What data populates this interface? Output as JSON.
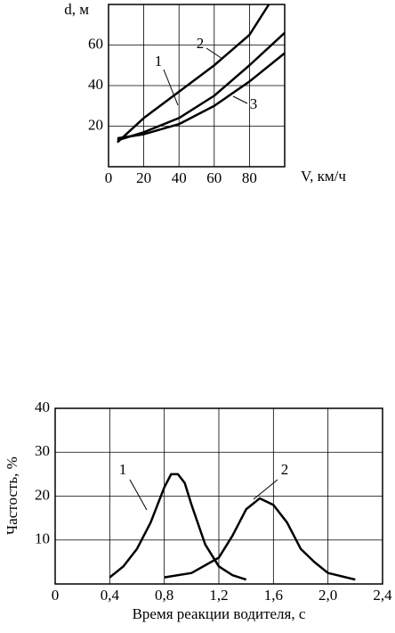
{
  "chart_data": [
    {
      "type": "line",
      "xlabel": "V, км/ч",
      "ylabel": "d, м",
      "xlim": [
        0,
        100
      ],
      "ylim": [
        0,
        80
      ],
      "xticks": [
        0,
        20,
        40,
        60,
        80
      ],
      "yticks": [
        20,
        40,
        60
      ],
      "grid": true,
      "series": [
        {
          "name": "1",
          "color": "#000000",
          "x": [
            5,
            20,
            40,
            60,
            80,
            100
          ],
          "values": [
            13,
            17,
            24,
            35,
            50,
            66
          ]
        },
        {
          "name": "2",
          "color": "#000000",
          "x": [
            5,
            20,
            40,
            60,
            80,
            91
          ],
          "values": [
            12,
            24,
            37,
            50,
            65,
            80
          ]
        },
        {
          "name": "3",
          "color": "#000000",
          "x": [
            5,
            20,
            40,
            60,
            80,
            100
          ],
          "values": [
            14,
            16,
            21,
            30,
            42,
            56
          ]
        }
      ]
    },
    {
      "type": "line",
      "xlabel": "Время реакции водителя, с",
      "ylabel": "Частость, %",
      "xlim": [
        0,
        2.4
      ],
      "ylim": [
        0,
        40
      ],
      "xticks": [
        0,
        {
          "value": 0.4,
          "label": "0,4"
        },
        {
          "value": 0.8,
          "label": "0,8"
        },
        {
          "value": 1.2,
          "label": "1,2"
        },
        {
          "value": 1.6,
          "label": "1,6"
        },
        {
          "value": 2.0,
          "label": "2,0"
        },
        {
          "value": 2.4,
          "label": "2,4"
        }
      ],
      "yticks": [
        10,
        20,
        30,
        40
      ],
      "grid": true,
      "series": [
        {
          "name": "1",
          "color": "#000000",
          "x": [
            0.4,
            0.5,
            0.6,
            0.7,
            0.8,
            0.85,
            0.9,
            0.95,
            1.0,
            1.1,
            1.2,
            1.3,
            1.4
          ],
          "values": [
            1.5,
            4,
            8,
            14,
            22,
            25,
            25,
            23,
            18,
            9,
            4,
            2,
            1
          ]
        },
        {
          "name": "2",
          "color": "#000000",
          "x": [
            0.8,
            1.0,
            1.2,
            1.3,
            1.4,
            1.5,
            1.6,
            1.7,
            1.8,
            1.9,
            2.0,
            2.2
          ],
          "values": [
            1.5,
            2.5,
            6,
            11,
            17,
            19.5,
            18,
            14,
            8,
            5,
            2.5,
            1
          ]
        }
      ]
    }
  ]
}
